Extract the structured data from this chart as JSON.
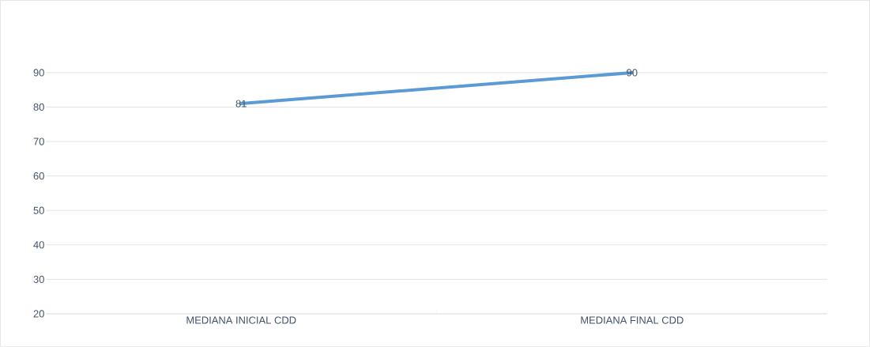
{
  "chart_data": {
    "type": "line",
    "categories": [
      "MEDIANA INICIAL CDD",
      "MEDIANA FINAL CDD"
    ],
    "series": [
      {
        "color": "#5b9bd5",
        "values": [
          81,
          90
        ]
      }
    ],
    "ylim": [
      20,
      90
    ],
    "yticks": [
      20,
      30,
      40,
      50,
      60,
      70,
      80,
      90
    ],
    "grid": "y",
    "marker": "none",
    "line_style": "solid",
    "data_labels": true
  }
}
